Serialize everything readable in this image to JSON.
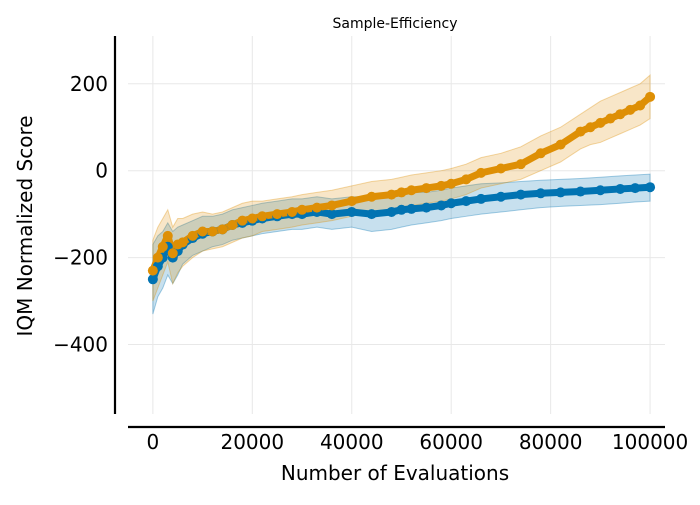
{
  "chart_data": {
    "type": "line",
    "title": "Sample-Efficiency",
    "xlabel": "Number of Evaluations",
    "ylabel": "IQM Normalized Score",
    "xlim": [
      -5000,
      103000
    ],
    "ylim": [
      -560,
      310
    ],
    "xticks": [
      0,
      20000,
      40000,
      60000,
      80000,
      100000
    ],
    "xtick_labels": [
      "0",
      "20000",
      "40000",
      "60000",
      "80000",
      "100000"
    ],
    "yticks": [
      200,
      0,
      -200,
      -400
    ],
    "ytick_labels": [
      "200",
      "0",
      "−200",
      "−400"
    ],
    "grid": true,
    "legend": "none",
    "series": [
      {
        "color": "#0173b2",
        "band_color": "#0173b2",
        "x": [
          0,
          1000,
          2000,
          3000,
          4000,
          5000,
          6000,
          8000,
          10000,
          12000,
          14000,
          16000,
          18000,
          20000,
          22000,
          25000,
          28000,
          30000,
          33000,
          36000,
          40000,
          44000,
          48000,
          50000,
          52000,
          55000,
          58000,
          60000,
          63000,
          66000,
          70000,
          74000,
          78000,
          82000,
          86000,
          90000,
          94000,
          97000,
          100000
        ],
        "y": [
          -250,
          -220,
          -200,
          -175,
          -200,
          -185,
          -170,
          -155,
          -145,
          -140,
          -135,
          -125,
          -120,
          -115,
          -110,
          -105,
          -100,
          -100,
          -95,
          -100,
          -95,
          -100,
          -95,
          -90,
          -88,
          -85,
          -80,
          -75,
          -70,
          -65,
          -60,
          -55,
          -52,
          -50,
          -48,
          -45,
          -42,
          -40,
          -38
        ],
        "lower": [
          -330,
          -290,
          -270,
          -240,
          -260,
          -240,
          -215,
          -195,
          -185,
          -175,
          -170,
          -160,
          -155,
          -150,
          -145,
          -140,
          -135,
          -135,
          -130,
          -135,
          -130,
          -140,
          -135,
          -130,
          -125,
          -120,
          -115,
          -110,
          -105,
          -100,
          -95,
          -90,
          -85,
          -82,
          -80,
          -78,
          -75,
          -72,
          -70
        ],
        "upper": [
          -170,
          -150,
          -140,
          -120,
          -140,
          -130,
          -125,
          -115,
          -105,
          -105,
          -100,
          -90,
          -85,
          -80,
          -75,
          -70,
          -65,
          -65,
          -60,
          -65,
          -60,
          -60,
          -55,
          -50,
          -50,
          -50,
          -45,
          -40,
          -35,
          -30,
          -28,
          -25,
          -22,
          -20,
          -18,
          -15,
          -12,
          -10,
          -8
        ]
      },
      {
        "color": "#de8f05",
        "band_color": "#de8f05",
        "x": [
          0,
          1000,
          2000,
          3000,
          4000,
          5000,
          6000,
          8000,
          10000,
          12000,
          14000,
          16000,
          18000,
          20000,
          22000,
          25000,
          28000,
          30000,
          33000,
          36000,
          40000,
          44000,
          48000,
          50000,
          52000,
          55000,
          58000,
          60000,
          63000,
          66000,
          70000,
          74000,
          78000,
          82000,
          86000,
          88000,
          90000,
          92000,
          94000,
          96000,
          98000,
          100000
        ],
        "y": [
          -230,
          -200,
          -175,
          -150,
          -190,
          -170,
          -165,
          -150,
          -140,
          -140,
          -135,
          -125,
          -115,
          -110,
          -105,
          -100,
          -95,
          -90,
          -85,
          -80,
          -70,
          -60,
          -55,
          -50,
          -45,
          -40,
          -35,
          -30,
          -20,
          -5,
          5,
          15,
          40,
          60,
          90,
          100,
          110,
          120,
          130,
          140,
          150,
          170
        ],
        "lower": [
          -300,
          -270,
          -240,
          -210,
          -260,
          -235,
          -220,
          -200,
          -185,
          -180,
          -175,
          -165,
          -155,
          -150,
          -140,
          -135,
          -130,
          -125,
          -120,
          -115,
          -105,
          -95,
          -90,
          -85,
          -80,
          -75,
          -70,
          -65,
          -55,
          -40,
          -30,
          -20,
          0,
          20,
          50,
          60,
          65,
          75,
          85,
          95,
          105,
          120
        ],
        "upper": [
          -160,
          -130,
          -110,
          -90,
          -130,
          -110,
          -110,
          -100,
          -95,
          -100,
          -95,
          -85,
          -75,
          -70,
          -70,
          -65,
          -60,
          -55,
          -50,
          -45,
          -35,
          -25,
          -20,
          -15,
          -10,
          -5,
          0,
          5,
          15,
          30,
          40,
          55,
          80,
          100,
          130,
          145,
          160,
          170,
          180,
          190,
          200,
          220
        ]
      }
    ]
  }
}
